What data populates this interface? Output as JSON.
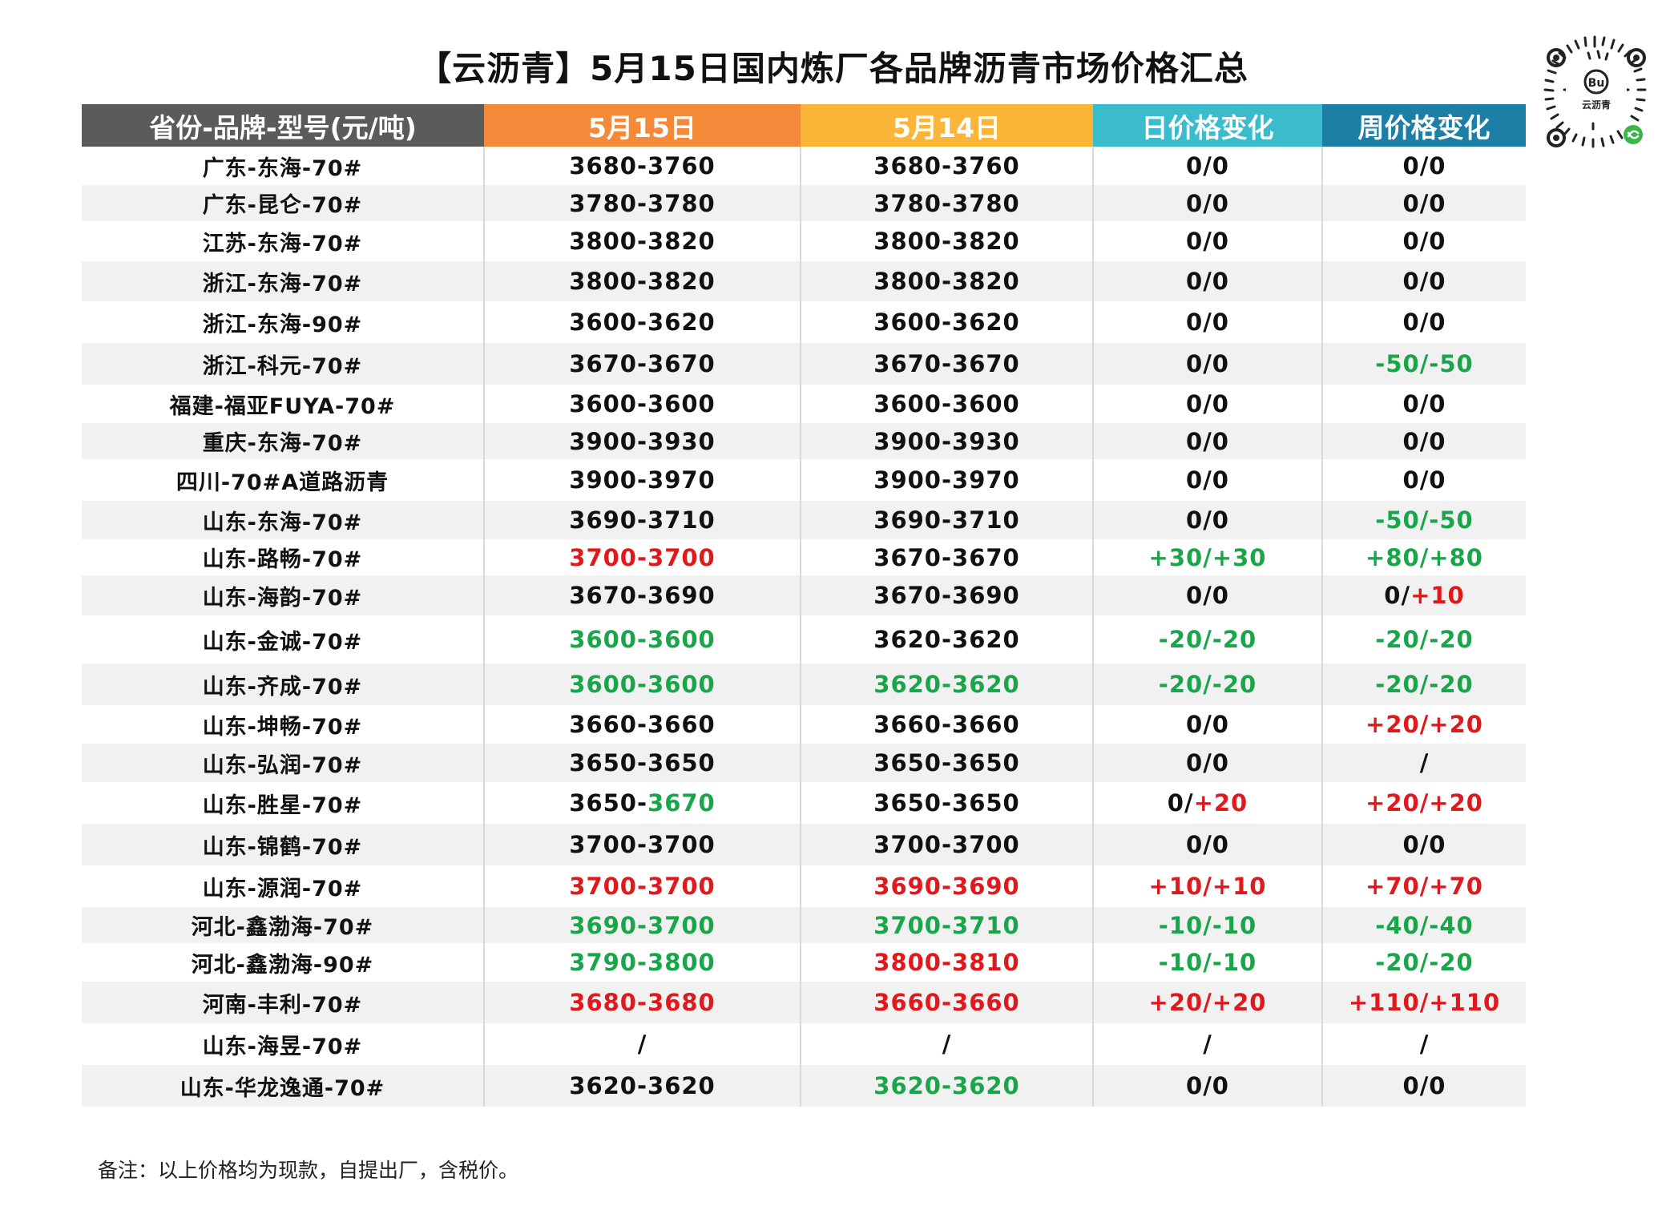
{
  "title": "【云沥青】5月15日国内炼厂各品牌沥青市场价格汇总",
  "logo": {
    "text": "云沥青"
  },
  "colors": {
    "header_col0": "#5b5b5b",
    "header_col1": "#f5893a",
    "header_col2": "#fbb63a",
    "header_col3": "#3bbccc",
    "header_col4": "#1e7fa6",
    "up": "#e0191d",
    "down": "#19a64a"
  },
  "table": {
    "headers": [
      "省份-品牌-型号(元/吨)",
      "5月15日",
      "5月14日",
      "日价格变化",
      "周价格变化"
    ],
    "rows": [
      [
        [
          "广东-东海-70#"
        ],
        [
          "3680-3760"
        ],
        [
          "3680-3760"
        ],
        [
          "0/0"
        ],
        [
          "0/0"
        ]
      ],
      [
        [
          "广东-昆仑-70#"
        ],
        [
          "3780-3780"
        ],
        [
          "3780-3780"
        ],
        [
          "0/0"
        ],
        [
          "0/0"
        ]
      ],
      [
        [
          "江苏-东海-70#"
        ],
        [
          "3800-3820"
        ],
        [
          "3800-3820"
        ],
        [
          "0/0"
        ],
        [
          "0/0"
        ]
      ],
      [
        [
          "浙江-东海-70#"
        ],
        [
          "3800-3820"
        ],
        [
          "3800-3820"
        ],
        [
          "0/0"
        ],
        [
          "0/0"
        ]
      ],
      [
        [
          "浙江-东海-90#"
        ],
        [
          "3600-3620"
        ],
        [
          "3600-3620"
        ],
        [
          "0/0"
        ],
        [
          "0/0"
        ]
      ],
      [
        [
          "浙江-科元-70#"
        ],
        [
          "3670-3670"
        ],
        [
          "3670-3670"
        ],
        [
          "0/0"
        ],
        [
          "-50/-50",
          "green"
        ]
      ],
      [
        [
          "福建-福亚FUYA-70#"
        ],
        [
          "3600-3600"
        ],
        [
          "3600-3600"
        ],
        [
          "0/0"
        ],
        [
          "0/0"
        ]
      ],
      [
        [
          "重庆-东海-70#"
        ],
        [
          "3900-3930"
        ],
        [
          "3900-3930"
        ],
        [
          "0/0"
        ],
        [
          "0/0"
        ]
      ],
      [
        [
          "四川-70#A道路沥青"
        ],
        [
          "3900-3970"
        ],
        [
          "3900-3970"
        ],
        [
          "0/0"
        ],
        [
          "0/0"
        ]
      ],
      [
        [
          "山东-东海-70#"
        ],
        [
          "3690-3710"
        ],
        [
          "3690-3710"
        ],
        [
          "0/0"
        ],
        [
          "-50/-50",
          "green"
        ]
      ],
      [
        [
          "山东-路畅-70#"
        ],
        [
          "3700-3700",
          "red"
        ],
        [
          "3670-3670"
        ],
        [
          "+30/+30",
          "green"
        ],
        [
          "+80/+80",
          "green"
        ]
      ],
      [
        [
          "山东-海韵-70#"
        ],
        [
          "3670-3690"
        ],
        [
          "3670-3690"
        ],
        [
          "0/0"
        ],
        [
          "0/",
          "",
          "+10",
          "red"
        ]
      ],
      [
        [
          "山东-金诚-70#"
        ],
        [
          "3600-3600",
          "green"
        ],
        [
          "3620-3620"
        ],
        [
          "-20/-20",
          "green"
        ],
        [
          "-20/-20",
          "green"
        ]
      ],
      [
        [
          "山东-齐成-70#"
        ],
        [
          "3600-3600",
          "green"
        ],
        [
          "3620-3620",
          "green"
        ],
        [
          "-20/-20",
          "green"
        ],
        [
          "-20/-20",
          "green"
        ]
      ],
      [
        [
          "山东-坤畅-70#"
        ],
        [
          "3660-3660"
        ],
        [
          "3660-3660"
        ],
        [
          "0/0"
        ],
        [
          "+20/+20",
          "red"
        ]
      ],
      [
        [
          "山东-弘润-70#"
        ],
        [
          "3650-3650"
        ],
        [
          "3650-3650"
        ],
        [
          "0/0"
        ],
        [
          "/"
        ]
      ],
      [
        [
          "山东-胜星-70#"
        ],
        [
          "3650-",
          "",
          "3670",
          "green"
        ],
        [
          "3650-3650"
        ],
        [
          "0/",
          "",
          "+20",
          "red"
        ],
        [
          "+20/+20",
          "red"
        ]
      ],
      [
        [
          "山东-锦鹤-70#"
        ],
        [
          "3700-3700"
        ],
        [
          "3700-3700"
        ],
        [
          "0/0"
        ],
        [
          "0/0"
        ]
      ],
      [
        [
          "山东-源润-70#"
        ],
        [
          "3700-3700",
          "red"
        ],
        [
          "3690-3690",
          "red"
        ],
        [
          "+10/+10",
          "red"
        ],
        [
          "+70/+70",
          "red"
        ]
      ],
      [
        [
          "河北-鑫渤海-70#"
        ],
        [
          "3690-3700",
          "green"
        ],
        [
          "3700-3710",
          "green"
        ],
        [
          "-10/-10",
          "green"
        ],
        [
          "-40/-40",
          "green"
        ]
      ],
      [
        [
          "河北-鑫渤海-90#"
        ],
        [
          "3790-3800",
          "green"
        ],
        [
          "3800-3810",
          "red"
        ],
        [
          "-10/-10",
          "green"
        ],
        [
          "-20/-20",
          "green"
        ]
      ],
      [
        [
          "河南-丰利-70#"
        ],
        [
          "3680-3680",
          "red"
        ],
        [
          "3660-3660",
          "red"
        ],
        [
          "+20/+20",
          "red"
        ],
        [
          "+110/+110",
          "red"
        ]
      ],
      [
        [
          "山东-海昱-70#"
        ],
        [
          "/"
        ],
        [
          "/"
        ],
        [
          "/"
        ],
        [
          "/"
        ]
      ],
      [
        [
          "山东-华龙逸通-70#"
        ],
        [
          "3620-3620"
        ],
        [
          "3620-3620",
          "green"
        ],
        [
          "0/0"
        ],
        [
          "0/0"
        ]
      ]
    ]
  },
  "note": "备注：以上价格均为现款，自提出厂，含税价。"
}
